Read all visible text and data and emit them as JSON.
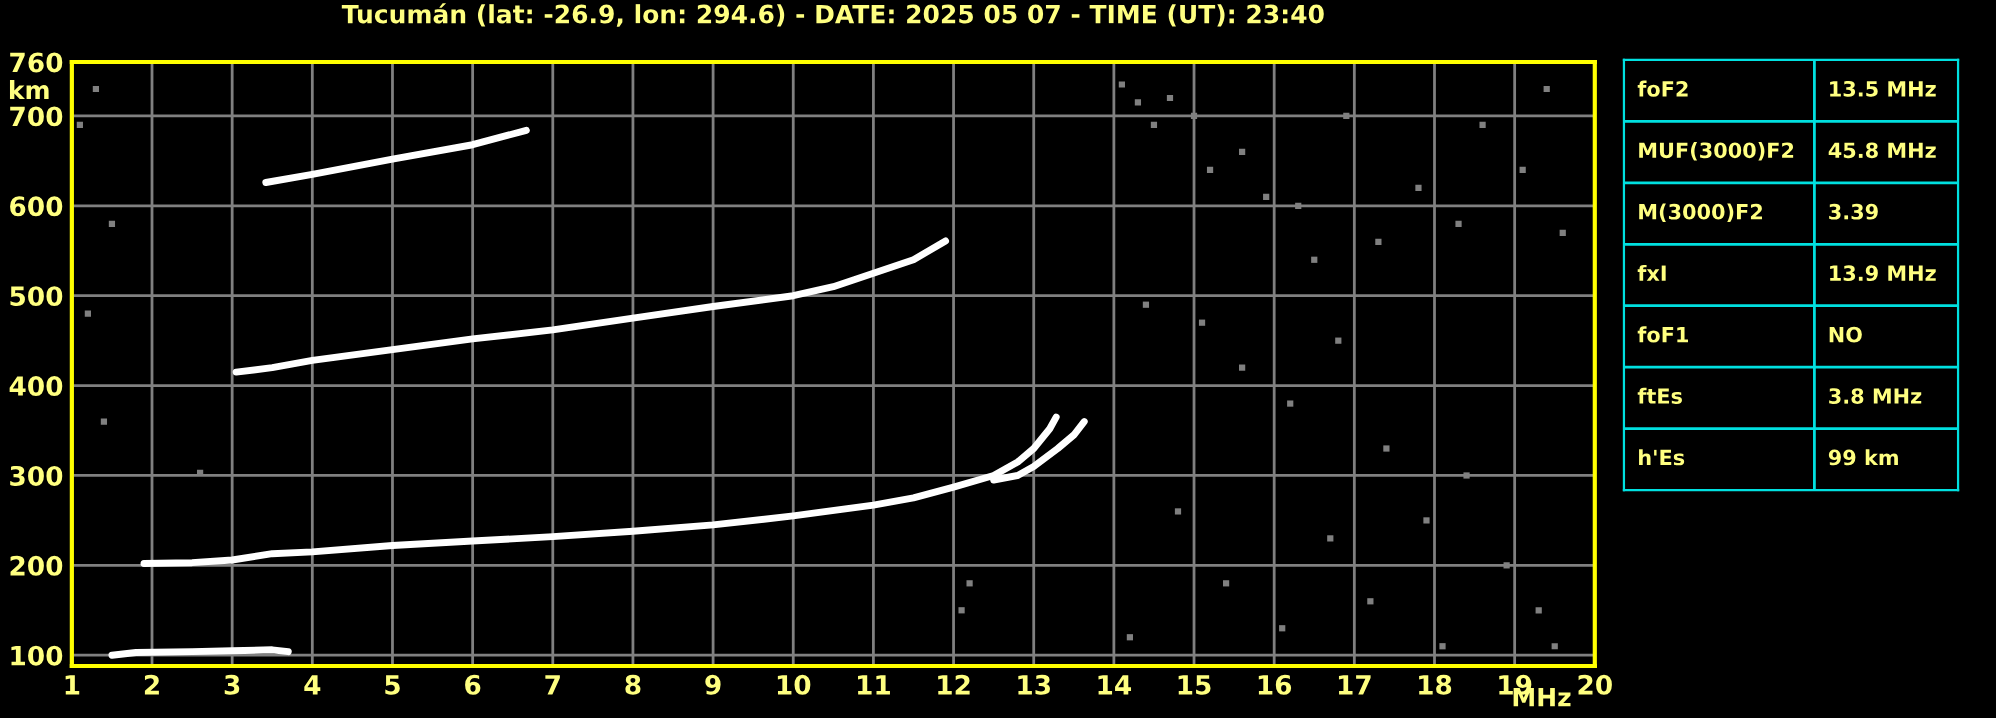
{
  "chart_data": [
    {
      "type": "scatter",
      "title": "Tucumán (lat: -26.9, lon: 294.6) - DATE: 2025 05 07 - TIME (UT): 23:40",
      "xlabel": "MHz",
      "ylabel": "km",
      "xlim": [
        1,
        20
      ],
      "ylim": [
        88,
        760
      ],
      "xticks": [
        1,
        2,
        3,
        4,
        5,
        6,
        7,
        8,
        9,
        10,
        11,
        12,
        13,
        14,
        15,
        16,
        17,
        18,
        19,
        20
      ],
      "yticks": [
        100,
        200,
        300,
        400,
        500,
        600,
        700,
        760
      ],
      "grid": true,
      "legend": false,
      "series": [
        {
          "type": "line",
          "color": "#ffffff",
          "x": [
            1.5,
            1.8,
            2.5,
            3.0,
            3.5,
            3.7
          ],
          "values": [
            100,
            103,
            104,
            105,
            106,
            104
          ]
        },
        {
          "type": "line",
          "color": "#ffffff",
          "x": [
            1.9,
            2.5,
            3,
            3.5,
            4,
            5,
            6,
            7,
            8,
            9,
            10,
            11,
            11.5,
            12,
            12.5,
            12.8,
            13.0,
            13.2,
            13.28
          ],
          "values": [
            202,
            203,
            206,
            213,
            215,
            222,
            227,
            232,
            238,
            245,
            255,
            267,
            275,
            287,
            300,
            315,
            330,
            352,
            365
          ]
        },
        {
          "type": "line",
          "color": "#ffffff",
          "x": [
            12.5,
            12.8,
            13.0,
            13.3,
            13.5,
            13.63
          ],
          "values": [
            295,
            300,
            310,
            330,
            345,
            360
          ]
        },
        {
          "type": "line",
          "color": "#ffffff",
          "x": [
            3.05,
            3.5,
            4,
            5,
            6,
            7,
            8,
            9,
            10,
            10.5,
            11,
            11.5,
            11.9
          ],
          "values": [
            415,
            420,
            428,
            440,
            452,
            462,
            475,
            488,
            500,
            510,
            525,
            540,
            561
          ]
        },
        {
          "type": "line",
          "color": "#ffffff",
          "x": [
            3.42,
            4,
            5,
            6,
            6.67
          ],
          "values": [
            626,
            635,
            652,
            668,
            684
          ]
        },
        {
          "type": "scatter",
          "color": "#808080",
          "marker": "square",
          "x": [
            14.1,
            14.3,
            14.5,
            14.7,
            15.0,
            15.2,
            15.6,
            15.9,
            16.3,
            16.5,
            16.9,
            17.3,
            17.8,
            18.3,
            18.6,
            19.1,
            19.4,
            19.6,
            14.4,
            15.1,
            15.6,
            16.2,
            16.8,
            17.4,
            17.9,
            18.4,
            18.9,
            19.3,
            14.8,
            15.4,
            16.1,
            16.7,
            17.2,
            18.1,
            19.5,
            14.2,
            1.2,
            1.3,
            1.5,
            1.4,
            2.6,
            12.1,
            12.2,
            1.1
          ],
          "values": [
            735,
            715,
            690,
            720,
            700,
            640,
            660,
            610,
            600,
            540,
            700,
            560,
            620,
            580,
            690,
            640,
            730,
            570,
            490,
            470,
            420,
            380,
            450,
            330,
            250,
            300,
            200,
            150,
            260,
            180,
            130,
            230,
            160,
            110,
            110,
            120,
            480,
            730,
            580,
            360,
            303,
            150,
            180,
            690
          ]
        }
      ]
    },
    {
      "type": "other",
      "annotations": [
        "foF2",
        "13.5 MHz",
        "MUF(3000)F2",
        "45.8 MHz",
        "M(3000)F2",
        "3.39",
        "fxI",
        "13.9 MHz",
        "foF1",
        "NO",
        "ftEs",
        "3.8 MHz",
        "h'Es",
        "99 km"
      ]
    }
  ]
}
